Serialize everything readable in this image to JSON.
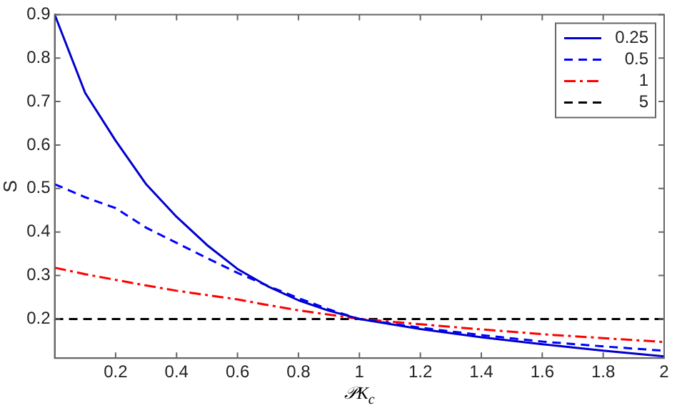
{
  "chart_data": {
    "type": "line",
    "xlabel": "𝒫K$_{c}$",
    "ylabel": "S",
    "x": [
      0,
      0.1,
      0.2,
      0.3,
      0.4,
      0.5,
      0.6,
      0.7,
      0.8,
      0.9,
      1,
      1.2,
      1.4,
      1.6,
      1.8,
      2
    ],
    "series": [
      {
        "name": "0.25",
        "color": "#0000cc",
        "line_style": "solid",
        "values": [
          0.9,
          0.72,
          0.61,
          0.51,
          0.435,
          0.37,
          0.315,
          0.275,
          0.243,
          0.219,
          0.2,
          0.177,
          0.158,
          0.142,
          0.127,
          0.114
        ]
      },
      {
        "name": "0.5",
        "color": "#0000ff",
        "line_style": "dashed",
        "values": [
          0.51,
          0.48,
          0.455,
          0.41,
          0.375,
          0.34,
          0.306,
          0.276,
          0.248,
          0.222,
          0.2,
          0.18,
          0.163,
          0.148,
          0.137,
          0.127
        ]
      },
      {
        "name": "1",
        "color": "#ff0000",
        "line_style": "dashdot",
        "values": [
          0.318,
          0.303,
          0.29,
          0.277,
          0.265,
          0.255,
          0.245,
          0.232,
          0.22,
          0.21,
          0.2,
          0.188,
          0.176,
          0.165,
          0.156,
          0.147
        ]
      },
      {
        "name": "5",
        "color": "#000000",
        "line_style": "dashed",
        "values": [
          0.2,
          0.2,
          0.2,
          0.2,
          0.2,
          0.2,
          0.2,
          0.2,
          0.2,
          0.2,
          0.2,
          0.2,
          0.2,
          0.2,
          0.2,
          0.2
        ]
      }
    ],
    "xlim": [
      0,
      2
    ],
    "xticks": [
      0.2,
      0.4,
      0.6,
      0.8,
      1,
      1.2,
      1.4,
      1.6,
      1.8,
      2
    ],
    "ylim": [
      0.11,
      0.9
    ],
    "yticks": [
      0.2,
      0.3,
      0.4,
      0.5,
      0.6,
      0.7,
      0.8,
      0.9
    ],
    "grid": false,
    "legend": "top right",
    "marker": "none"
  }
}
